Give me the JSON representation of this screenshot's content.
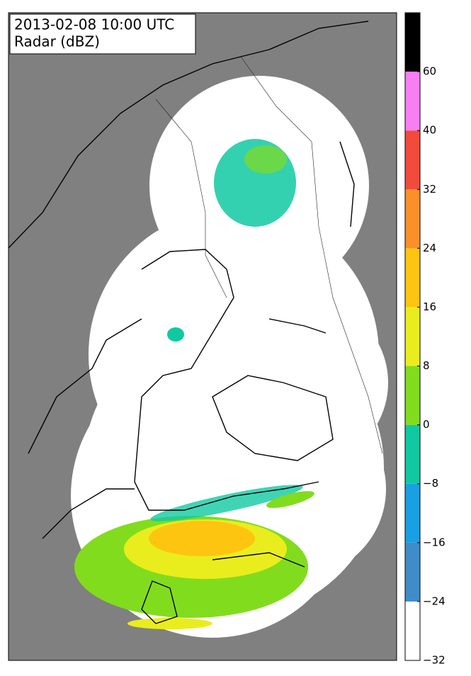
{
  "header": {
    "title": "2013-02-08 10:00 UTC",
    "subtitle": "Radar (dBZ)"
  },
  "colorbar": {
    "ticks": [
      {
        "value": -32,
        "label": "−32"
      },
      {
        "value": -24,
        "label": "−24"
      },
      {
        "value": -16,
        "label": "−16"
      },
      {
        "value": -8,
        "label": "−8"
      },
      0,
      8,
      16,
      24,
      32,
      40,
      60
    ],
    "colors": [
      "#ffffff",
      "#3f8cc9",
      "#18a0e2",
      "#10c9a2",
      "#82dc1e",
      "#eaed1d",
      "#fdc50f",
      "#fb902b",
      "#f24b3b",
      "#f97ef2",
      "#000000"
    ]
  }
}
